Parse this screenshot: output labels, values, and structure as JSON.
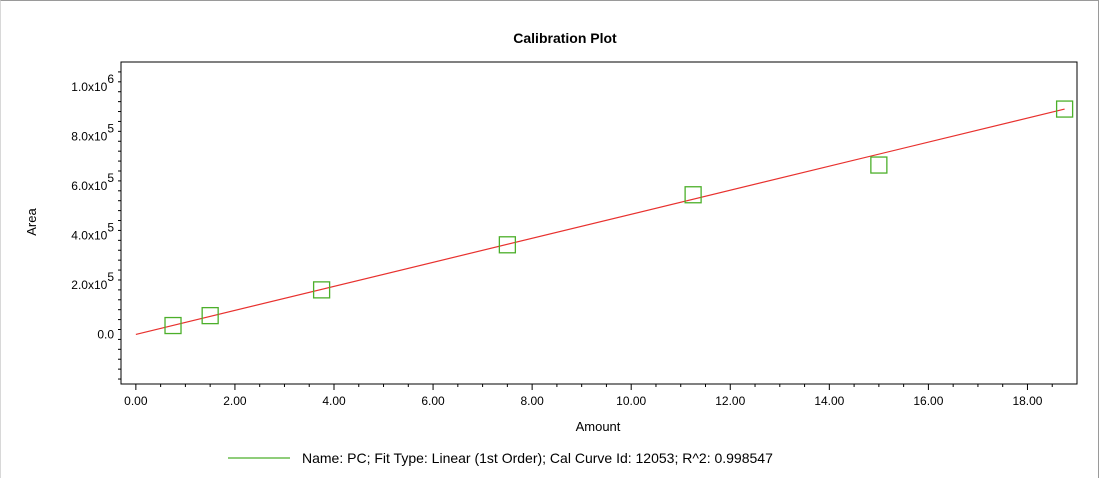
{
  "chart_data": {
    "type": "scatter",
    "title": "Calibration Plot",
    "xlabel": "Amount",
    "ylabel": "Area",
    "xlim": [
      -0.3,
      19.0
    ],
    "ylim": [
      -200000,
      1100000
    ],
    "x_ticks": [
      0,
      2,
      4,
      6,
      8,
      10,
      12,
      14,
      16,
      18
    ],
    "x_tick_labels": [
      "0.00",
      "2.00",
      "4.00",
      "6.00",
      "8.00",
      "10.00",
      "12.00",
      "14.00",
      "16.00",
      "18.00"
    ],
    "y_ticks": [
      {
        "value": 0,
        "mantissa": "0.0",
        "exp": ""
      },
      {
        "value": 200000,
        "mantissa": "2.0x10",
        "exp": "5"
      },
      {
        "value": 400000,
        "mantissa": "4.0x10",
        "exp": "5"
      },
      {
        "value": 600000,
        "mantissa": "6.0x10",
        "exp": "5"
      },
      {
        "value": 800000,
        "mantissa": "8.0x10",
        "exp": "5"
      },
      {
        "value": 1000000,
        "mantissa": "1.0x10",
        "exp": "6"
      }
    ],
    "series": [
      {
        "name": "PC",
        "marker": "square",
        "color": "#4caf2a",
        "x": [
          0.75,
          1.5,
          3.75,
          7.5,
          11.25,
          15.0,
          18.75
        ],
        "y": [
          36000,
          76000,
          180000,
          362000,
          564000,
          684000,
          910000
        ]
      }
    ],
    "fit": {
      "type": "linear",
      "color": "#e8312e",
      "x": [
        0.0,
        18.75
      ],
      "y": [
        0,
        910000
      ]
    },
    "grid": false,
    "legend": {
      "placement": "bottom",
      "line_color": "#4caf2a",
      "text": "Name: PC;   Fit Type: Linear (1st Order);   Cal Curve Id: 12053;   R^2: 0.998547"
    }
  }
}
